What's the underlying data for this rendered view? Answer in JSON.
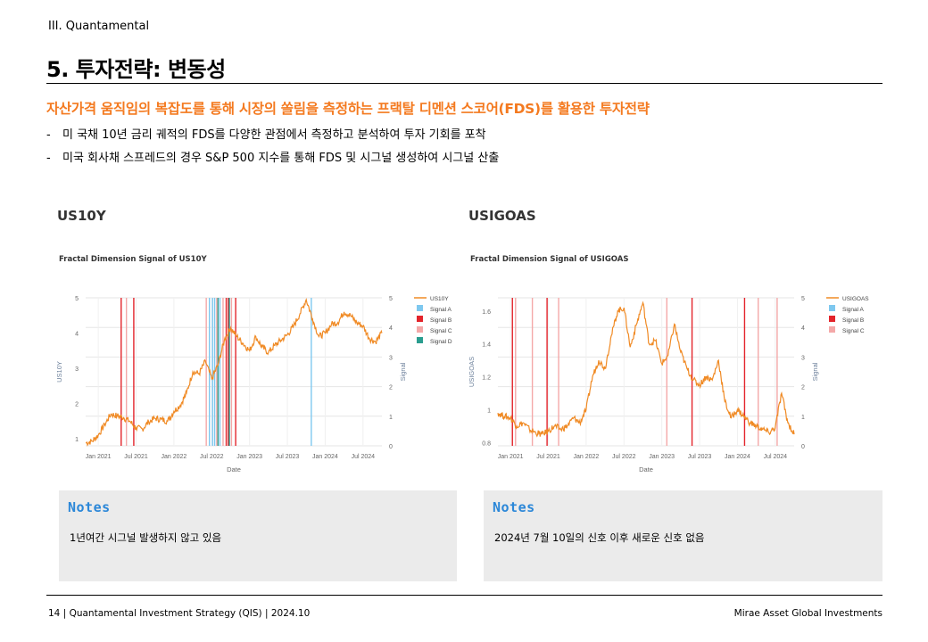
{
  "header": {
    "section": "III. Quantamental",
    "title": "5. 투자전략: 변동성",
    "subtitle": "자산가격 움직임의 복잡도를 통해 시장의 쏠림을 측정하는 프랙탈 디멘션 스코어(FDS)를 활용한 투자전략",
    "bullets": [
      "미 국채 10년 금리 궤적의 FDS를 다양한 관점에서 측정하고 분석하여 투자 기회를 포착",
      "미국 회사채 스프레드의 경우 S&P 500 지수를 통해 FDS 및 시그널 생성하여 시그널 산출"
    ]
  },
  "colors": {
    "accent": "#f47a20",
    "line": "#f08a24",
    "signal_a": "#7ec8ef",
    "signal_b": "#e3242b",
    "signal_c": "#f4a8a8",
    "signal_d": "#2a9d8f",
    "notes_title": "#2b87d8"
  },
  "chart_data": [
    {
      "type": "line",
      "heading": "US10Y",
      "title": "Fractal Dimension Signal of US10Y",
      "xlabel": "Date",
      "ylabel": "US10Y",
      "y2label": "Signal",
      "x_ticks": [
        "Jan 2021",
        "Jul 2021",
        "Jan 2022",
        "Jul 2022",
        "Jan 2023",
        "Jul 2023",
        "Jan 2024",
        "Jul 2024"
      ],
      "x_range": [
        "2020-11",
        "2024-10"
      ],
      "ylim": [
        0.8,
        5.0
      ],
      "yticks": [
        1,
        2,
        3,
        4,
        5
      ],
      "y2lim": [
        0,
        5
      ],
      "y2ticks": [
        0,
        1,
        2,
        3,
        4,
        5
      ],
      "grid": true,
      "legend_position": "right",
      "series": [
        {
          "name": "US10Y",
          "dates": [
            "2020-11-01",
            "2020-12-01",
            "2021-01-01",
            "2021-02-01",
            "2021-03-01",
            "2021-04-01",
            "2021-05-01",
            "2021-06-01",
            "2021-07-01",
            "2021-08-01",
            "2021-09-01",
            "2021-10-01",
            "2021-11-01",
            "2021-12-01",
            "2022-01-01",
            "2022-02-01",
            "2022-03-01",
            "2022-04-01",
            "2022-05-01",
            "2022-06-01",
            "2022-07-01",
            "2022-08-01",
            "2022-09-01",
            "2022-10-01",
            "2022-11-01",
            "2022-12-01",
            "2023-01-01",
            "2023-02-01",
            "2023-03-01",
            "2023-04-01",
            "2023-05-01",
            "2023-06-01",
            "2023-07-01",
            "2023-08-01",
            "2023-09-01",
            "2023-10-01",
            "2023-11-01",
            "2023-12-01",
            "2024-01-01",
            "2024-02-01",
            "2024-03-01",
            "2024-04-01",
            "2024-05-01",
            "2024-06-01",
            "2024-07-01",
            "2024-08-01",
            "2024-09-01",
            "2024-10-01"
          ],
          "values": [
            0.88,
            0.93,
            1.1,
            1.4,
            1.7,
            1.65,
            1.6,
            1.5,
            1.3,
            1.28,
            1.48,
            1.58,
            1.55,
            1.5,
            1.78,
            1.95,
            2.3,
            2.9,
            2.85,
            3.2,
            2.7,
            3.1,
            3.8,
            4.15,
            3.9,
            3.7,
            3.5,
            3.9,
            3.6,
            3.45,
            3.65,
            3.8,
            3.95,
            4.2,
            4.55,
            4.95,
            4.4,
            3.9,
            4.0,
            4.25,
            4.3,
            4.6,
            4.5,
            4.3,
            4.2,
            3.85,
            3.75,
            4.0
          ]
        }
      ],
      "signals": [
        {
          "name": "Signal A",
          "color_key": "signal_a",
          "dates": [
            "2022-06-20",
            "2022-07-05",
            "2022-07-15",
            "2022-08-10",
            "2023-10-25"
          ]
        },
        {
          "name": "Signal B",
          "color_key": "signal_b",
          "dates": [
            "2021-04-20",
            "2021-06-20",
            "2022-09-10",
            "2022-09-20",
            "2022-10-25"
          ]
        },
        {
          "name": "Signal C",
          "color_key": "signal_c",
          "dates": [
            "2021-05-15",
            "2022-06-05",
            "2022-07-25",
            "2022-08-25",
            "2022-10-05"
          ]
        },
        {
          "name": "Signal D",
          "color_key": "signal_d",
          "dates": [
            "2022-08-01",
            "2022-09-25"
          ]
        }
      ]
    },
    {
      "type": "line",
      "heading": "USIGOAS",
      "title": "Fractal Dimension Signal of USIGOAS",
      "xlabel": "Date",
      "ylabel": "USIGOAS",
      "y2label": "Signal",
      "x_ticks": [
        "Jan 2021",
        "Jul 2021",
        "Jan 2022",
        "Jul 2022",
        "Jan 2023",
        "Jul 2023",
        "Jan 2024",
        "Jul 2024"
      ],
      "x_range": [
        "2020-11",
        "2024-10"
      ],
      "ylim": [
        0.78,
        1.68
      ],
      "yticks": [
        0.8,
        1.0,
        1.2,
        1.4,
        1.6
      ],
      "y2lim": [
        0,
        5
      ],
      "y2ticks": [
        0,
        1,
        2,
        3,
        4,
        5
      ],
      "grid": true,
      "legend_position": "right",
      "series": [
        {
          "name": "USIGOAS",
          "dates": [
            "2020-11-01",
            "2020-12-01",
            "2021-01-01",
            "2021-02-01",
            "2021-03-01",
            "2021-04-01",
            "2021-05-01",
            "2021-06-01",
            "2021-07-01",
            "2021-08-01",
            "2021-09-01",
            "2021-10-01",
            "2021-11-01",
            "2021-12-01",
            "2022-01-01",
            "2022-02-01",
            "2022-03-01",
            "2022-04-01",
            "2022-05-01",
            "2022-06-01",
            "2022-07-01",
            "2022-08-01",
            "2022-09-01",
            "2022-10-01",
            "2022-11-01",
            "2022-12-01",
            "2023-01-01",
            "2023-02-01",
            "2023-03-01",
            "2023-04-01",
            "2023-05-01",
            "2023-06-01",
            "2023-07-01",
            "2023-08-01",
            "2023-09-01",
            "2023-10-01",
            "2023-11-01",
            "2023-12-01",
            "2024-01-01",
            "2024-02-01",
            "2024-03-01",
            "2024-04-01",
            "2024-05-01",
            "2024-06-01",
            "2024-07-01",
            "2024-08-01",
            "2024-09-01",
            "2024-10-01"
          ],
          "values": [
            0.98,
            0.96,
            0.95,
            0.9,
            0.92,
            0.88,
            0.86,
            0.85,
            0.87,
            0.9,
            0.88,
            0.9,
            0.95,
            0.92,
            1.0,
            1.2,
            1.3,
            1.25,
            1.45,
            1.6,
            1.62,
            1.38,
            1.52,
            1.65,
            1.4,
            1.42,
            1.28,
            1.33,
            1.52,
            1.35,
            1.25,
            1.18,
            1.15,
            1.2,
            1.18,
            1.3,
            1.05,
            0.95,
            1.0,
            0.96,
            0.92,
            0.9,
            0.88,
            0.86,
            0.89,
            1.1,
            0.92,
            0.85
          ]
        }
      ],
      "signals": [
        {
          "name": "Signal A",
          "color_key": "signal_a",
          "dates": []
        },
        {
          "name": "Signal B",
          "color_key": "signal_b",
          "dates": [
            "2021-01-10",
            "2021-06-25",
            "2023-05-25",
            "2024-02-05"
          ]
        },
        {
          "name": "Signal C",
          "color_key": "signal_c",
          "dates": [
            "2021-01-25",
            "2021-04-15",
            "2021-08-20",
            "2023-01-25",
            "2024-04-10",
            "2024-07-10"
          ]
        }
      ]
    }
  ],
  "notes": [
    {
      "title": "Notes",
      "text": "1년여간 시그널 발생하지 않고 있음"
    },
    {
      "title": "Notes",
      "text": "2024년 7월 10일의 신호 이후 새로운 신호 없음"
    }
  ],
  "footer": {
    "left": "14 | Quantamental Investment Strategy (QIS) | 2024.10",
    "right": "Mirae Asset Global Investments"
  }
}
